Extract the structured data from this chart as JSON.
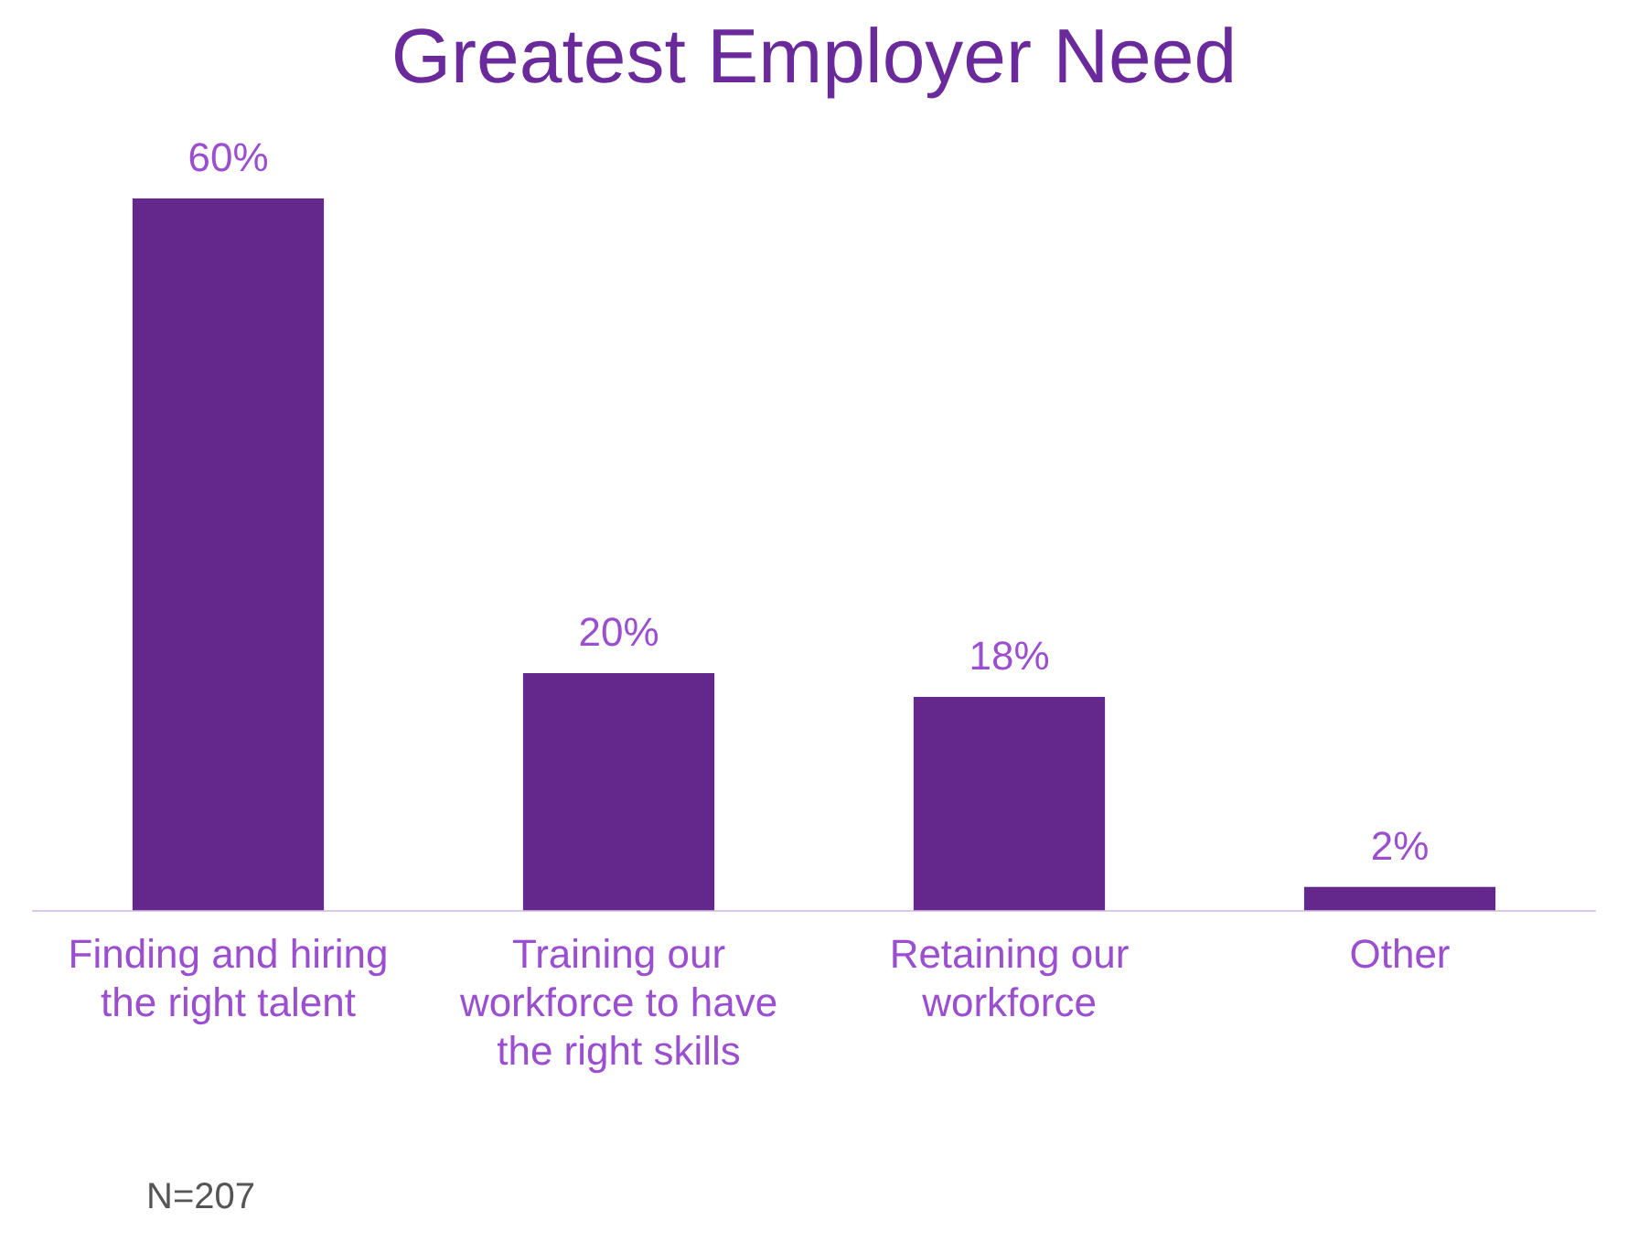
{
  "chart_data": {
    "type": "bar",
    "title": "Greatest Employer Need",
    "categories": [
      "Finding and hiring the right talent",
      "Training our workforce to have the right skills",
      "Retaining our workforce",
      "Other"
    ],
    "values": [
      60,
      20,
      18,
      2
    ],
    "value_labels": [
      "60%",
      "20%",
      "18%",
      "2%"
    ],
    "color": "#64288c",
    "grid": false,
    "legend": false,
    "annotations": [
      "N=207"
    ]
  }
}
